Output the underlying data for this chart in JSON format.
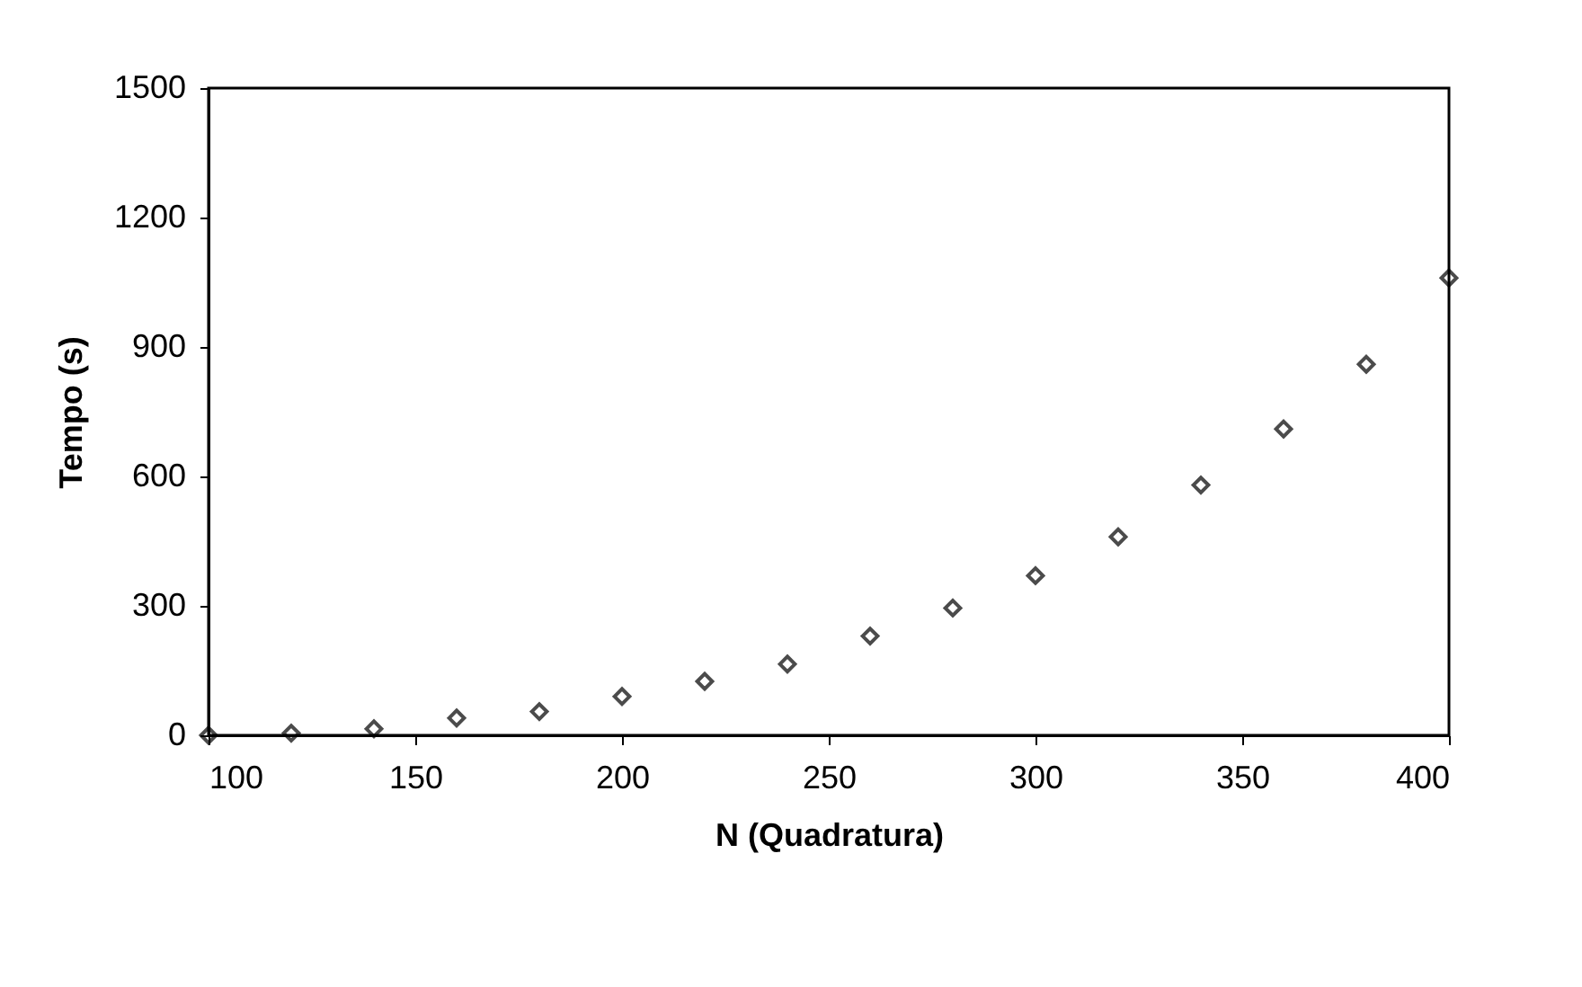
{
  "chart_data": {
    "type": "scatter",
    "xlabel": "N (Quadratura)",
    "ylabel": "Tempo (s)",
    "x": [
      100,
      120,
      140,
      160,
      180,
      200,
      220,
      240,
      260,
      280,
      300,
      320,
      340,
      360,
      380,
      400
    ],
    "series": [
      {
        "color": "#000000",
        "values": [
          0,
          5,
          15,
          40,
          55,
          90,
          125,
          165,
          230,
          295,
          370,
          460,
          580,
          710,
          860,
          1060
        ]
      }
    ],
    "xlim": [
      100,
      400
    ],
    "xticks": [
      100,
      150,
      200,
      250,
      300,
      350,
      400
    ],
    "ylim": [
      0,
      1500
    ],
    "yticks": [
      0,
      300,
      600,
      900,
      1200,
      1500
    ],
    "marker": "diamond",
    "grid": false,
    "legend": false
  }
}
